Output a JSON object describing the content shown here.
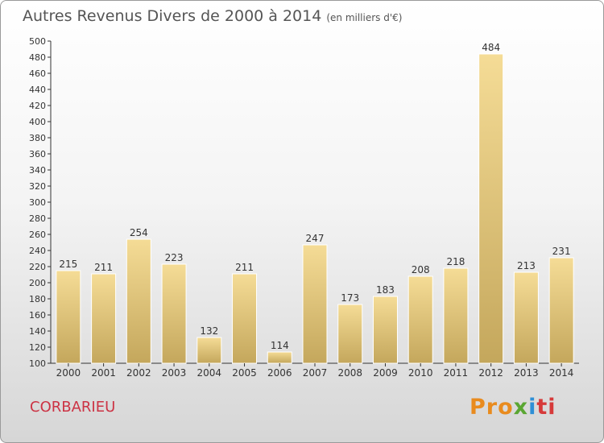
{
  "title": "Autres Revenus Divers de 2000 à 2014",
  "subtitle": "(en milliers d'€)",
  "city": "CORBARIEU",
  "logo": {
    "p1": "Pro",
    "p2": "x",
    "p3": "i",
    "p4": "ti"
  },
  "colors": {
    "bar_top": "#f5dc96",
    "bar_bottom": "#c4a75c",
    "axis": "#333333",
    "grid": "#cccccc"
  },
  "chart_data": {
    "type": "bar",
    "categories": [
      "2000",
      "2001",
      "2002",
      "2003",
      "2004",
      "2005",
      "2006",
      "2007",
      "2008",
      "2009",
      "2010",
      "2011",
      "2012",
      "2013",
      "2014"
    ],
    "values": [
      215,
      211,
      254,
      223,
      132,
      211,
      114,
      247,
      173,
      183,
      208,
      218,
      484,
      213,
      231
    ],
    "ylim": [
      100,
      500
    ],
    "yticks": [
      100,
      120,
      140,
      160,
      180,
      200,
      220,
      240,
      260,
      280,
      300,
      320,
      340,
      360,
      380,
      400,
      420,
      440,
      460,
      480,
      500
    ],
    "grid": false
  }
}
